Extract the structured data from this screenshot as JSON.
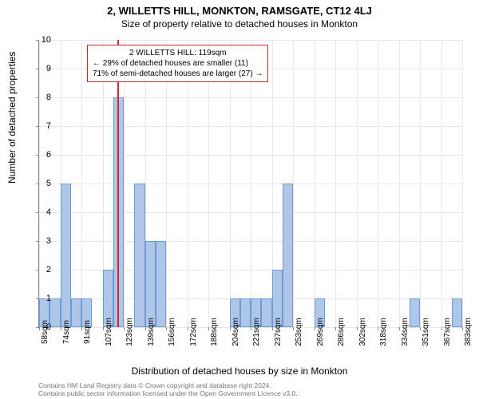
{
  "chart": {
    "type": "bar",
    "title_main": "2, WILLETTS HILL, MONKTON, RAMSGATE, CT12 4LJ",
    "title_sub": "Size of property relative to detached houses in Monkton",
    "y_axis_label": "Number of detached properties",
    "x_axis_label": "Distribution of detached houses by size in Monkton",
    "ylim_max": 10,
    "y_ticks": [
      0,
      1,
      2,
      3,
      4,
      5,
      6,
      7,
      8,
      9,
      10
    ],
    "x_tick_labels": [
      "58sqm",
      "74sqm",
      "91sqm",
      "107sqm",
      "123sqm",
      "139sqm",
      "156sqm",
      "172sqm",
      "188sqm",
      "204sqm",
      "221sqm",
      "237sqm",
      "253sqm",
      "269sqm",
      "286sqm",
      "302sqm",
      "318sqm",
      "334sqm",
      "351sqm",
      "367sqm",
      "383sqm"
    ],
    "bars": [
      {
        "x": 0,
        "h": 1
      },
      {
        "x": 1,
        "h": 1
      },
      {
        "x": 2,
        "h": 5
      },
      {
        "x": 3,
        "h": 1
      },
      {
        "x": 4,
        "h": 1
      },
      {
        "x": 5,
        "h": 0
      },
      {
        "x": 6,
        "h": 2
      },
      {
        "x": 7,
        "h": 8
      },
      {
        "x": 8,
        "h": 0
      },
      {
        "x": 9,
        "h": 5
      },
      {
        "x": 10,
        "h": 3
      },
      {
        "x": 11,
        "h": 3
      },
      {
        "x": 12,
        "h": 0
      },
      {
        "x": 13,
        "h": 0
      },
      {
        "x": 14,
        "h": 0
      },
      {
        "x": 15,
        "h": 0
      },
      {
        "x": 16,
        "h": 0
      },
      {
        "x": 17,
        "h": 0
      },
      {
        "x": 18,
        "h": 1
      },
      {
        "x": 19,
        "h": 1
      },
      {
        "x": 20,
        "h": 1
      },
      {
        "x": 21,
        "h": 1
      },
      {
        "x": 22,
        "h": 2
      },
      {
        "x": 23,
        "h": 5
      },
      {
        "x": 24,
        "h": 0
      },
      {
        "x": 25,
        "h": 0
      },
      {
        "x": 26,
        "h": 1
      },
      {
        "x": 27,
        "h": 0
      },
      {
        "x": 28,
        "h": 0
      },
      {
        "x": 29,
        "h": 0
      },
      {
        "x": 30,
        "h": 0
      },
      {
        "x": 31,
        "h": 0
      },
      {
        "x": 32,
        "h": 0
      },
      {
        "x": 33,
        "h": 0
      },
      {
        "x": 34,
        "h": 0
      },
      {
        "x": 35,
        "h": 1
      },
      {
        "x": 36,
        "h": 0
      },
      {
        "x": 37,
        "h": 0
      },
      {
        "x": 38,
        "h": 0
      },
      {
        "x": 39,
        "h": 1
      }
    ],
    "bar_color": "#aec7e8",
    "bar_border": "#6b9bd1",
    "num_slots": 40,
    "marker": {
      "slot": 7.4,
      "color": "#d62728"
    },
    "annotation": {
      "line1": "2 WILLETTS HILL: 119sqm",
      "line2": "← 29% of detached houses are smaller (11)",
      "line3": "71% of semi-detached houses are larger (27) →"
    },
    "footer_line1": "Contains HM Land Registry data © Crown copyright and database right 2024.",
    "footer_line2": "Contains public sector information licensed under the Open Government Licence v3.0."
  }
}
